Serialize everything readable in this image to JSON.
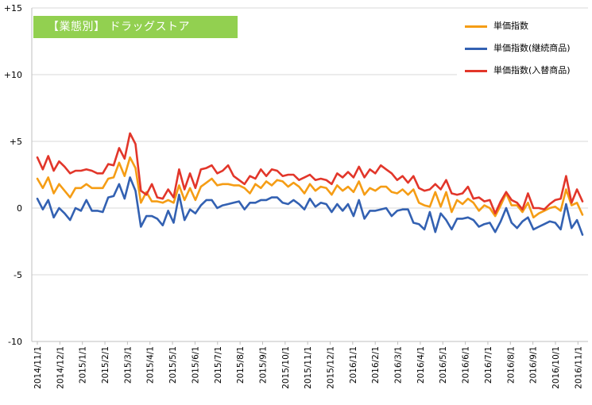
{
  "chart_data": {
    "type": "line",
    "title": "【業態別】 ドラッグストア",
    "ylim": [
      -10,
      15
    ],
    "yticks": [
      "+15",
      "+10",
      "+5",
      "0",
      "-5",
      "-10"
    ],
    "ytick_values": [
      15,
      10,
      5,
      0,
      -5,
      -10
    ],
    "x_tick_labels": [
      "2014/11/1",
      "2014/12/1",
      "2015/1/1",
      "2015/2/1",
      "2015/3/1",
      "2015/4/1",
      "2015/5/1",
      "2015/6/1",
      "2015/7/1",
      "2015/8/1",
      "2015/9/1",
      "2015/10/1",
      "2015/11/1",
      "2015/12/1",
      "2016/1/1",
      "2016/2/1",
      "2016/3/1",
      "2016/4/1",
      "2016/5/1",
      "2016/6/1",
      "2016/7/1",
      "2016/8/1",
      "2016/9/1",
      "2016/10/1",
      "2016/11/1"
    ],
    "x_unit": "week",
    "grid": "horizontal",
    "legend_position": "top-right",
    "colors": {
      "series1": "#f59d15",
      "series2": "#3361b2",
      "series3": "#e2362a",
      "badge": "#92d050",
      "grid": "#d9d9d9"
    },
    "series": [
      {
        "name": "単価指数",
        "values": [
          2.2,
          1.5,
          2.3,
          1.1,
          1.8,
          1.3,
          0.8,
          1.5,
          1.5,
          1.8,
          1.5,
          1.5,
          1.5,
          2.2,
          2.3,
          3.4,
          2.4,
          3.8,
          3.0,
          0.4,
          1.2,
          0.5,
          0.5,
          0.4,
          0.6,
          0.4,
          1.7,
          0.6,
          1.5,
          0.6,
          1.6,
          1.9,
          2.2,
          1.7,
          1.8,
          1.8,
          1.7,
          1.7,
          1.5,
          1.1,
          1.8,
          1.5,
          2.0,
          1.7,
          2.1,
          2.0,
          1.6,
          1.9,
          1.6,
          1.1,
          1.8,
          1.3,
          1.6,
          1.5,
          1.0,
          1.7,
          1.3,
          1.6,
          1.2,
          2.0,
          1.0,
          1.5,
          1.3,
          1.6,
          1.6,
          1.2,
          1.1,
          1.4,
          1.0,
          1.4,
          0.4,
          0.2,
          0.1,
          1.2,
          0.1,
          1.2,
          -0.3,
          0.6,
          0.3,
          0.7,
          0.4,
          -0.2,
          0.2,
          0.0,
          -0.6,
          0.2,
          1.1,
          0.2,
          0.2,
          -0.3,
          0.4,
          -0.7,
          -0.4,
          -0.2,
          0.0,
          0.1,
          -0.2,
          1.4,
          0.2,
          0.4,
          -0.5
        ]
      },
      {
        "name": "単価指数(継続商品)",
        "values": [
          0.7,
          -0.1,
          0.6,
          -0.7,
          0.0,
          -0.4,
          -0.9,
          0.0,
          -0.2,
          0.6,
          -0.2,
          -0.2,
          -0.3,
          0.8,
          0.9,
          1.8,
          0.7,
          2.3,
          1.3,
          -1.4,
          -0.6,
          -0.6,
          -0.8,
          -1.3,
          -0.2,
          -1.1,
          1.0,
          -0.9,
          -0.1,
          -0.4,
          0.2,
          0.6,
          0.6,
          0.0,
          0.2,
          0.3,
          0.4,
          0.5,
          -0.1,
          0.4,
          0.4,
          0.6,
          0.6,
          0.8,
          0.8,
          0.4,
          0.3,
          0.6,
          0.3,
          -0.1,
          0.7,
          0.1,
          0.4,
          0.3,
          -0.3,
          0.3,
          -0.2,
          0.3,
          -0.6,
          0.6,
          -0.8,
          -0.2,
          -0.2,
          -0.1,
          0.0,
          -0.6,
          -0.2,
          -0.1,
          -0.1,
          -1.1,
          -1.2,
          -1.6,
          -0.3,
          -1.8,
          -0.4,
          -0.9,
          -1.6,
          -0.8,
          -0.8,
          -0.7,
          -0.9,
          -1.4,
          -1.2,
          -1.1,
          -1.8,
          -1.0,
          0.0,
          -1.1,
          -1.5,
          -1.0,
          -0.7,
          -1.6,
          -1.4,
          -1.2,
          -1.0,
          -1.1,
          -1.6,
          0.3,
          -1.5,
          -0.9,
          -2.0
        ]
      },
      {
        "name": "単価指数(入替商品)",
        "values": [
          3.8,
          2.9,
          3.9,
          2.8,
          3.5,
          3.1,
          2.6,
          2.8,
          2.8,
          2.9,
          2.8,
          2.6,
          2.6,
          3.3,
          3.2,
          4.5,
          3.7,
          5.6,
          4.8,
          1.3,
          1.0,
          1.8,
          0.8,
          0.7,
          1.4,
          0.8,
          2.9,
          1.4,
          2.6,
          1.5,
          2.9,
          3.0,
          3.2,
          2.6,
          2.8,
          3.2,
          2.4,
          2.1,
          1.8,
          2.4,
          2.2,
          2.9,
          2.4,
          2.9,
          2.8,
          2.4,
          2.5,
          2.5,
          2.1,
          2.3,
          2.5,
          2.1,
          2.2,
          2.1,
          1.8,
          2.6,
          2.3,
          2.7,
          2.3,
          3.1,
          2.3,
          2.9,
          2.6,
          3.2,
          2.9,
          2.6,
          2.1,
          2.4,
          1.9,
          2.4,
          1.5,
          1.3,
          1.4,
          1.8,
          1.4,
          2.1,
          1.1,
          1.0,
          1.1,
          1.6,
          0.7,
          0.8,
          0.5,
          0.6,
          -0.4,
          0.5,
          1.2,
          0.6,
          0.4,
          -0.1,
          1.1,
          0.0,
          0.0,
          -0.1,
          0.3,
          0.6,
          0.7,
          2.4,
          0.4,
          1.4,
          0.5
        ]
      }
    ]
  }
}
